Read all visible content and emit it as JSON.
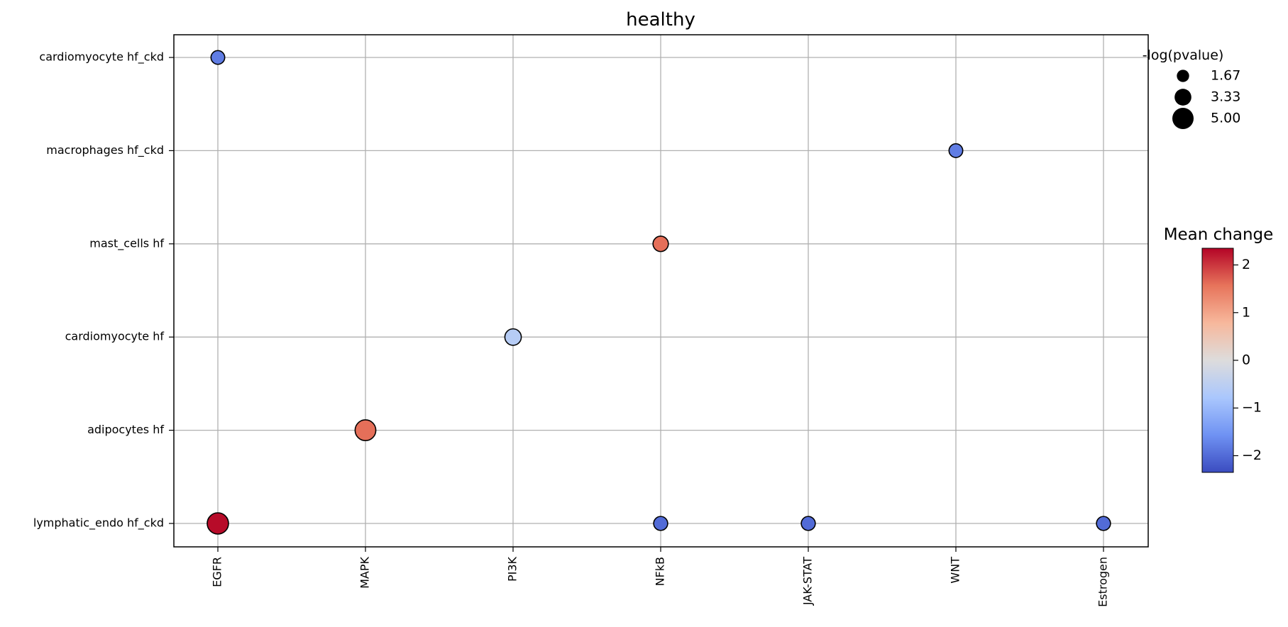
{
  "chart_data": {
    "type": "scatter",
    "title": "healthy",
    "xlabel": "",
    "ylabel": "",
    "x_categories": [
      "EGFR",
      "MAPK",
      "PI3K",
      "NFkB",
      "JAK-STAT",
      "WNT",
      "Estrogen"
    ],
    "y_categories": [
      "cardiomyocyte hf_ckd",
      "macrophages hf_ckd",
      "mast_cells hf",
      "cardiomyocyte hf",
      "adipocytes hf",
      "lymphatic_endo hf_ckd"
    ],
    "points": [
      {
        "x": "EGFR",
        "y": "cardiomyocyte hf_ckd",
        "neg_log_pvalue": 2.2,
        "mean_change": -1.8
      },
      {
        "x": "WNT",
        "y": "macrophages hf_ckd",
        "neg_log_pvalue": 2.2,
        "mean_change": -1.8
      },
      {
        "x": "NFkB",
        "y": "mast_cells hf",
        "neg_log_pvalue": 2.8,
        "mean_change": 1.6
      },
      {
        "x": "PI3K",
        "y": "cardiomyocyte hf",
        "neg_log_pvalue": 3.2,
        "mean_change": -0.6
      },
      {
        "x": "MAPK",
        "y": "adipocytes hf",
        "neg_log_pvalue": 4.8,
        "mean_change": 1.6
      },
      {
        "x": "EGFR",
        "y": "lymphatic_endo hf_ckd",
        "neg_log_pvalue": 5.0,
        "mean_change": 2.3
      },
      {
        "x": "NFkB",
        "y": "lymphatic_endo hf_ckd",
        "neg_log_pvalue": 2.3,
        "mean_change": -2.0
      },
      {
        "x": "JAK-STAT",
        "y": "lymphatic_endo hf_ckd",
        "neg_log_pvalue": 2.3,
        "mean_change": -2.0
      },
      {
        "x": "Estrogen",
        "y": "lymphatic_endo hf_ckd",
        "neg_log_pvalue": 2.3,
        "mean_change": -2.0
      }
    ],
    "grid": true,
    "size_legend": {
      "title": "-log(pvalue)",
      "position": "top-right",
      "entries": [
        {
          "label": "1.67",
          "value": 1.67
        },
        {
          "label": "3.33",
          "value": 3.33
        },
        {
          "label": "5.00",
          "value": 5.0
        }
      ]
    },
    "colorbar": {
      "title": "Mean change",
      "position": "right",
      "colormap": "coolwarm",
      "range": [
        -2.35,
        2.35
      ],
      "ticks": [
        {
          "value": 2,
          "label": "2"
        },
        {
          "value": 1,
          "label": "1"
        },
        {
          "value": 0,
          "label": "0"
        },
        {
          "value": -1,
          "label": "−1"
        },
        {
          "value": -2,
          "label": "−2"
        }
      ],
      "colors": [
        "#3b4cc0",
        "#6f92f3",
        "#aac7fd",
        "#dddcdc",
        "#f7b89c",
        "#e7745b",
        "#b40426"
      ]
    },
    "marker_edge_color": "#000000",
    "grid_color": "#b0b0b0"
  }
}
